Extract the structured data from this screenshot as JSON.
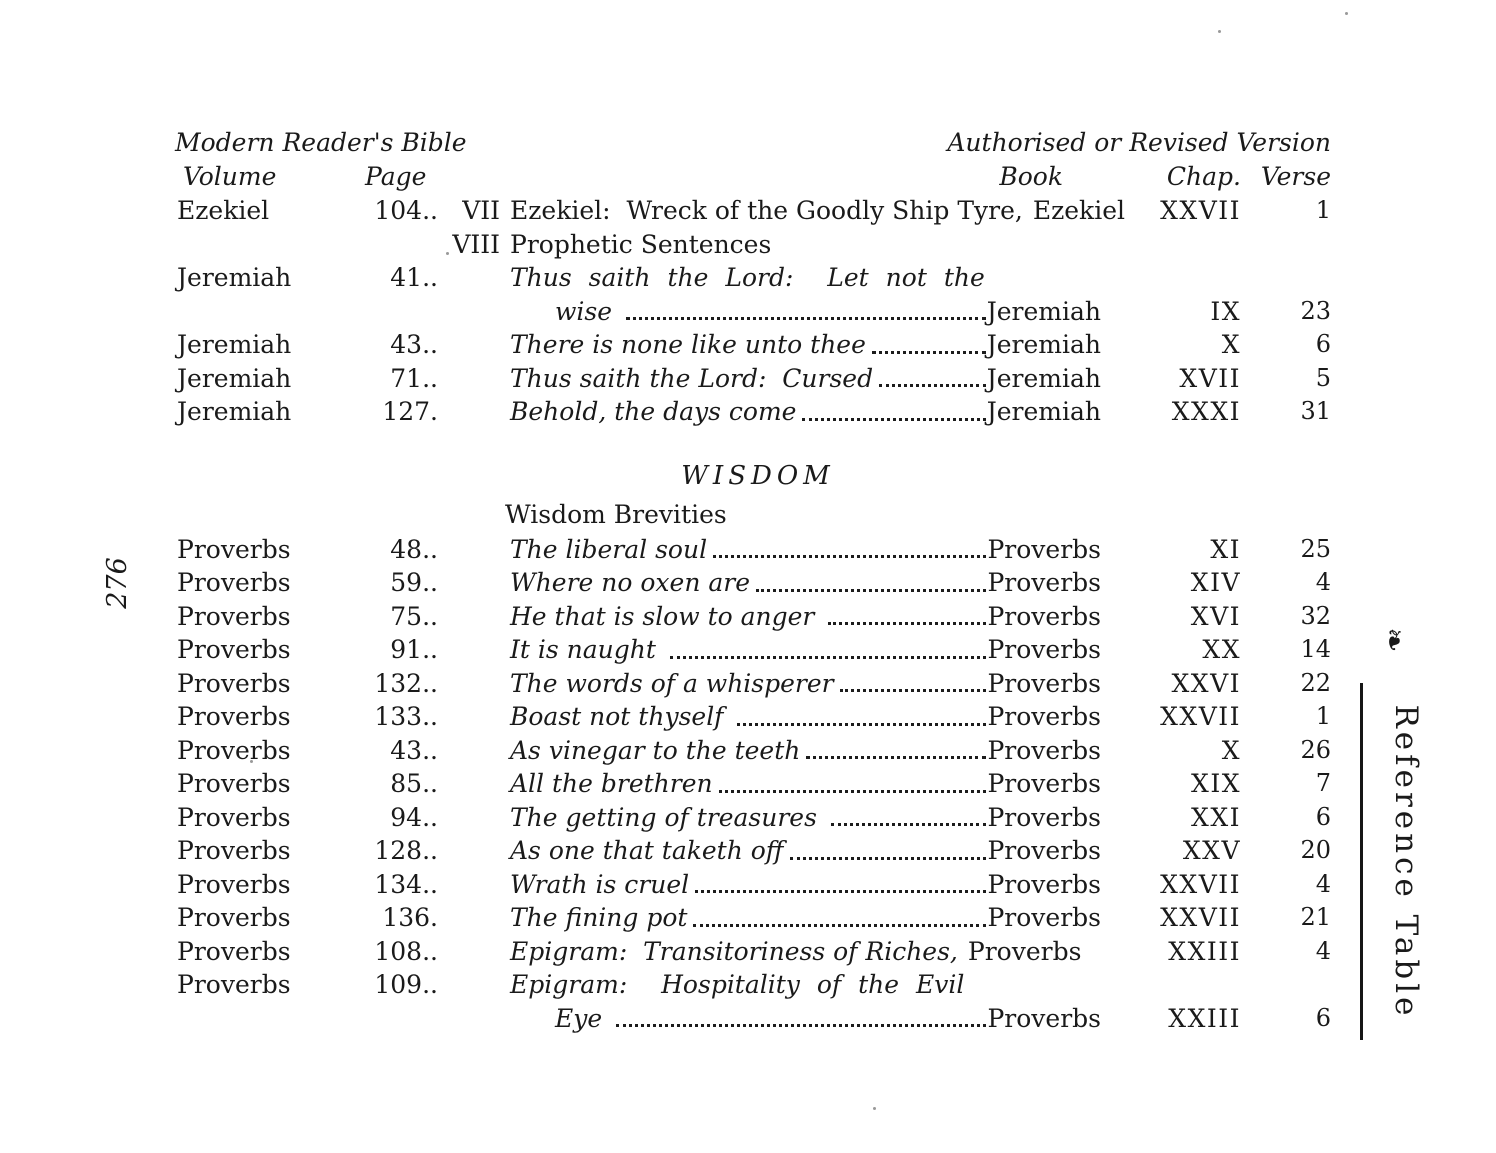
{
  "header": {
    "left_title": "Modern Reader's Bible",
    "right_title": "Authorised or Revised Version",
    "col_volume": "Volume",
    "col_page": "Page",
    "col_book": "Book",
    "col_chap": "Chap.",
    "col_verse": "Verse"
  },
  "margins": {
    "page_number": "276",
    "side_label": "Reference Table",
    "ornament": "❧"
  },
  "rows": [
    {
      "type": "entry",
      "volume": "Ezekiel",
      "page": "104..",
      "num": "VII",
      "title": "Ezekiel:  Wreck of the Goodly Ship Tyre,",
      "style": "roman",
      "leader": false,
      "book": "Ezekiel",
      "chap": "XXVII",
      "verse": "1"
    },
    {
      "type": "entry",
      "volume": "",
      "page": "",
      "num": "VIII",
      "title": "Prophetic Sentences",
      "style": "roman",
      "leader": false,
      "book": "",
      "chap": "",
      "verse": ""
    },
    {
      "type": "entry",
      "volume": "Jeremiah",
      "page": "41..",
      "num": "",
      "title": "Thus saith the Lord:  Let not the",
      "style": "italic",
      "wide": true,
      "leader": false,
      "book": "",
      "chap": "",
      "verse": ""
    },
    {
      "type": "entry",
      "volume": "",
      "page": "",
      "num": "",
      "title": "wise ",
      "style": "italic",
      "indent": true,
      "leader": true,
      "book": "Jeremiah",
      "chap": "IX",
      "verse": "23"
    },
    {
      "type": "entry",
      "volume": "Jeremiah",
      "page": "43..",
      "num": "",
      "title": "There is none like unto thee",
      "style": "italic",
      "leader": true,
      "book": "Jeremiah",
      "chap": "X",
      "verse": "6"
    },
    {
      "type": "entry",
      "volume": "Jeremiah",
      "page": "71..",
      "num": "",
      "title": "Thus saith the Lord:  Cursed",
      "style": "italic",
      "leader": true,
      "book": "Jeremiah",
      "chap": "XVII",
      "verse": "5"
    },
    {
      "type": "entry",
      "volume": "Jeremiah",
      "page": "127.",
      "num": "",
      "title": "Behold, the days come",
      "style": "italic",
      "leader": true,
      "book": "Jeremiah",
      "chap": "XXXI",
      "verse": "31"
    },
    {
      "type": "spacer"
    },
    {
      "type": "section",
      "text": "WISDOM"
    },
    {
      "type": "subhead",
      "text": "Wisdom Brevities"
    },
    {
      "type": "entry",
      "volume": "Proverbs",
      "page": "48..",
      "num": "",
      "title": "The liberal soul",
      "style": "italic",
      "leader": true,
      "book": "Proverbs",
      "chap": "XI",
      "verse": "25"
    },
    {
      "type": "entry",
      "volume": "Proverbs",
      "page": "59..",
      "num": "",
      "title": "Where no oxen are",
      "style": "italic",
      "leader": true,
      "book": "Proverbs",
      "chap": "XIV",
      "verse": "4"
    },
    {
      "type": "entry",
      "volume": "Proverbs",
      "page": "75..",
      "num": "",
      "title": "He that is slow to anger ",
      "style": "italic",
      "leader": true,
      "book": "Proverbs",
      "chap": "XVI",
      "verse": "32"
    },
    {
      "type": "entry",
      "volume": "Proverbs",
      "page": "91..",
      "num": "",
      "title": "It is naught ",
      "style": "italic",
      "leader": true,
      "book": "Proverbs",
      "chap": "XX",
      "verse": "14"
    },
    {
      "type": "entry",
      "volume": "Proverbs",
      "page": "132..",
      "num": "",
      "title": "The words of a whisperer",
      "style": "italic",
      "leader": true,
      "book": "Proverbs",
      "chap": "XXVI",
      "verse": "22"
    },
    {
      "type": "entry",
      "volume": "Proverbs",
      "page": "133..",
      "num": "",
      "title": "Boast not thyself ",
      "style": "italic",
      "leader": true,
      "book": "Proverbs",
      "chap": "XXVII",
      "verse": "1"
    },
    {
      "type": "entry",
      "volume": "Proverbs",
      "page": "43..",
      "num": "",
      "title": "As vinegar to the teeth",
      "style": "italic",
      "leader": true,
      "book": "Proverbs",
      "chap": "X",
      "verse": "26"
    },
    {
      "type": "entry",
      "volume": "Proverbs",
      "page": "85..",
      "num": "",
      "title": "All the brethren",
      "style": "italic",
      "leader": true,
      "book": "Proverbs",
      "chap": "XIX",
      "verse": "7"
    },
    {
      "type": "entry",
      "volume": "Proverbs",
      "page": "94..",
      "num": "",
      "title": "The getting of treasures ",
      "style": "italic",
      "leader": true,
      "book": "Proverbs",
      "chap": "XXI",
      "verse": "6"
    },
    {
      "type": "entry",
      "volume": "Proverbs",
      "page": "128..",
      "num": "",
      "title": "As one that taketh off",
      "style": "italic",
      "leader": true,
      "book": "Proverbs",
      "chap": "XXV",
      "verse": "20"
    },
    {
      "type": "entry",
      "volume": "Proverbs",
      "page": "134..",
      "num": "",
      "title": "Wrath is cruel",
      "style": "italic",
      "leader": true,
      "book": "Proverbs",
      "chap": "XXVII",
      "verse": "4"
    },
    {
      "type": "entry",
      "volume": "Proverbs",
      "page": "136.",
      "num": "",
      "title": "The fining pot",
      "style": "italic",
      "leader": true,
      "book": "Proverbs",
      "chap": "XXVII",
      "verse": "21"
    },
    {
      "type": "entry",
      "volume": "Proverbs",
      "page": "108..",
      "num": "",
      "title": "Epigram:  Transitoriness of Riches,",
      "style": "italic",
      "leader": false,
      "book": "Proverbs",
      "chap": "XXIII",
      "verse": "4"
    },
    {
      "type": "entry",
      "volume": "Proverbs",
      "page": "109..",
      "num": "",
      "title": "Epigram:  Hospitality of the Evil",
      "style": "italic",
      "wide": true,
      "leader": false,
      "book": "",
      "chap": "",
      "verse": ""
    },
    {
      "type": "entry",
      "volume": "",
      "page": "",
      "num": "",
      "title": "Eye ",
      "style": "italic",
      "indent": true,
      "leader": true,
      "book": "Proverbs",
      "chap": "XXIII",
      "verse": "6"
    }
  ]
}
